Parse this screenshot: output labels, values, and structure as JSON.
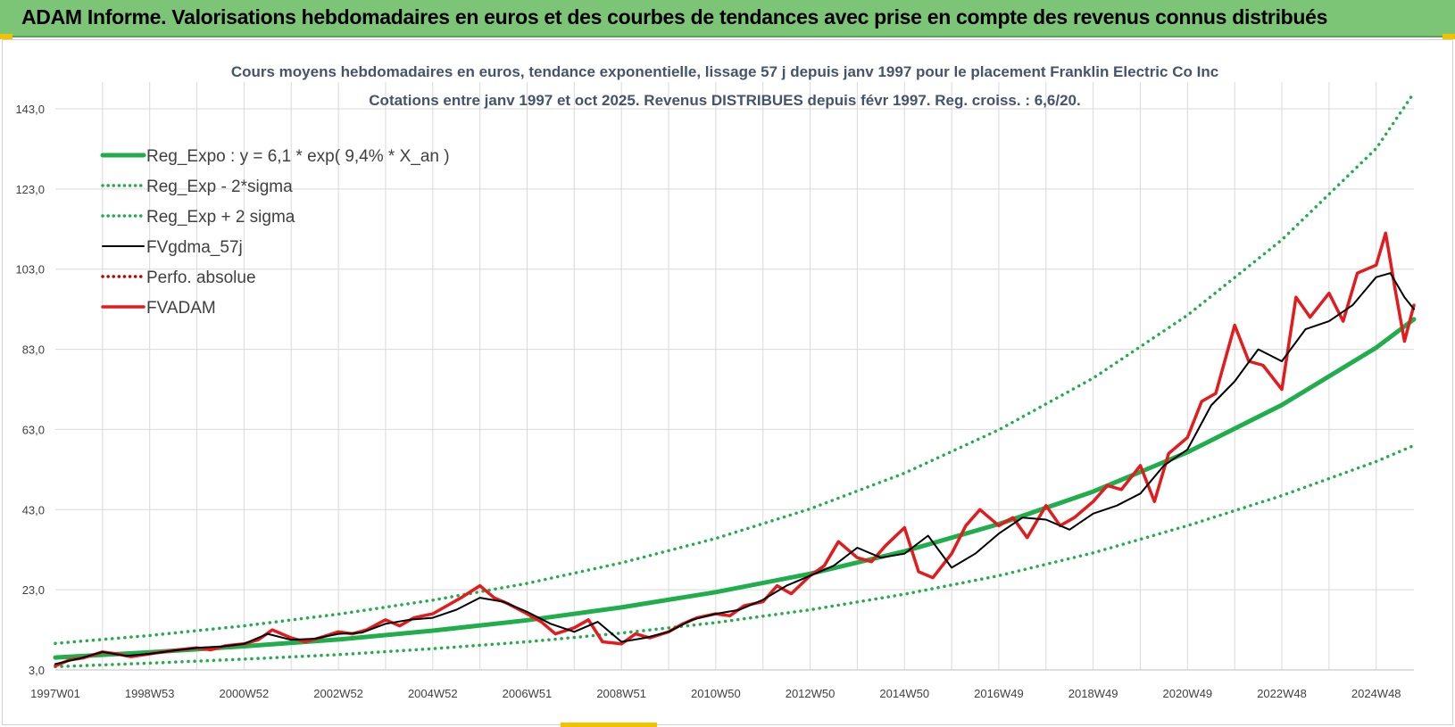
{
  "header": {
    "title": "ADAM Informe. Valorisations hebdomadaires en euros et des courbes de tendances avec prise en compte des revenus connus distribués"
  },
  "colors": {
    "banner_bg": "#7cc576",
    "trend_green": "#1fae4b",
    "fvgdma_black": "#000000",
    "fvadam_red": "#e41a1c",
    "perfo_red": "#c00000",
    "gridline": "#d9d9d9"
  },
  "chart_data": {
    "type": "line",
    "title_line1": "Cours moyens hebdomadaires en euros, tendance exponentielle, lissage 57 j depuis janv 1997 pour le placement Franklin Electric Co Inc",
    "title_line2": "Cotations entre janv 1997 et oct 2025. Revenus DISTRIBUES depuis févr 1997. Reg. croiss. : 6,6/20.",
    "xlabel": "",
    "ylabel": "",
    "ylim": [
      3.0,
      143.0
    ],
    "xlim": [
      1997.0,
      2025.8
    ],
    "y_ticks": [
      "3,0",
      "23,0",
      "43,0",
      "63,0",
      "83,0",
      "103,0",
      "123,0",
      "143,0"
    ],
    "x_ticks": [
      {
        "label": "1997W01",
        "x": 1997.0
      },
      {
        "label": "1998W53",
        "x": 1999.0
      },
      {
        "label": "2000W52",
        "x": 2001.0
      },
      {
        "label": "2002W52",
        "x": 2003.0
      },
      {
        "label": "2004W52",
        "x": 2005.0
      },
      {
        "label": "2006W51",
        "x": 2007.0
      },
      {
        "label": "2008W51",
        "x": 2009.0
      },
      {
        "label": "2010W50",
        "x": 2011.0
      },
      {
        "label": "2012W50",
        "x": 2013.0
      },
      {
        "label": "2014W50",
        "x": 2015.0
      },
      {
        "label": "2016W49",
        "x": 2017.0
      },
      {
        "label": "2018W49",
        "x": 2019.0
      },
      {
        "label": "2020W49",
        "x": 2021.0
      },
      {
        "label": "2022W48",
        "x": 2023.0
      },
      {
        "label": "2024W48",
        "x": 2025.0
      }
    ],
    "grid": true,
    "legend_position": "top-left",
    "series": [
      {
        "name": "Reg_Expo : y = 6,1 * exp( 9,4% *  X_an )",
        "style": "solid-thick",
        "color": "#1fae4b",
        "x": [
          1997.0,
          1999.0,
          2001.0,
          2003.0,
          2005.0,
          2007.0,
          2009.0,
          2011.0,
          2013.0,
          2015.0,
          2017.0,
          2019.0,
          2021.0,
          2023.0,
          2025.0,
          2025.8
        ],
        "y": [
          6.1,
          7.4,
          8.9,
          10.6,
          12.8,
          15.4,
          18.6,
          22.4,
          27.0,
          32.6,
          39.4,
          47.5,
          57.3,
          69.1,
          83.4,
          90.5
        ]
      },
      {
        "name": "Reg_Exp - 2*sigma",
        "style": "dotted",
        "color": "#1fae4b",
        "x": [
          1997.0,
          1999.0,
          2001.0,
          2003.0,
          2005.0,
          2007.0,
          2009.0,
          2011.0,
          2013.0,
          2015.0,
          2017.0,
          2019.0,
          2021.0,
          2023.0,
          2025.0,
          2025.8
        ],
        "y": [
          3.8,
          4.7,
          5.7,
          6.8,
          8.3,
          10.0,
          12.2,
          14.8,
          18.0,
          21.9,
          26.5,
          32.2,
          39.0,
          46.5,
          55.0,
          59.0
        ]
      },
      {
        "name": "Reg_Exp + 2 sigma",
        "style": "dotted",
        "color": "#1fae4b",
        "x": [
          1997.0,
          1999.0,
          2001.0,
          2003.0,
          2005.0,
          2007.0,
          2009.0,
          2011.0,
          2013.0,
          2015.0,
          2017.0,
          2019.0,
          2021.0,
          2023.0,
          2025.0,
          2025.8
        ],
        "y": [
          9.6,
          11.6,
          14.0,
          16.9,
          20.4,
          24.6,
          29.7,
          35.8,
          43.2,
          52.1,
          62.9,
          75.8,
          91.5,
          110.3,
          133.1,
          147.0
        ]
      },
      {
        "name": "FVgdma_57j",
        "style": "solid",
        "color": "#000000",
        "x": [
          1997.0,
          1997.5,
          1998.0,
          1998.5,
          1999.0,
          1999.5,
          2000.0,
          2000.5,
          2001.0,
          2001.5,
          2002.0,
          2002.5,
          2003.0,
          2003.5,
          2004.0,
          2004.5,
          2005.0,
          2005.5,
          2006.0,
          2006.5,
          2007.0,
          2007.5,
          2008.0,
          2008.5,
          2009.0,
          2009.5,
          2010.0,
          2010.5,
          2011.0,
          2011.5,
          2012.0,
          2012.5,
          2013.0,
          2013.5,
          2014.0,
          2014.5,
          2015.0,
          2015.5,
          2016.0,
          2016.5,
          2017.0,
          2017.5,
          2018.0,
          2018.5,
          2019.0,
          2019.5,
          2020.0,
          2020.5,
          2021.0,
          2021.5,
          2022.0,
          2022.5,
          2023.0,
          2023.5,
          2024.0,
          2024.5,
          2025.0,
          2025.3,
          2025.6,
          2025.8
        ],
        "y": [
          4.5,
          5.8,
          7.5,
          6.5,
          7.0,
          7.8,
          8.5,
          8.8,
          9.5,
          12.0,
          10.5,
          10.8,
          12.0,
          12.3,
          14.5,
          15.5,
          16.0,
          18.0,
          21.0,
          20.0,
          17.5,
          14.5,
          12.5,
          15.0,
          10.0,
          11.0,
          12.5,
          15.5,
          17.0,
          18.0,
          20.5,
          24.0,
          26.5,
          29.0,
          33.5,
          31.0,
          32.0,
          36.5,
          28.5,
          32.0,
          37.0,
          41.0,
          40.5,
          38.0,
          42.0,
          44.0,
          47.0,
          54.0,
          58.0,
          69.0,
          75.0,
          83.0,
          80.0,
          88.0,
          90.0,
          94.0,
          101.0,
          102.0,
          96.0,
          93.0
        ]
      },
      {
        "name": "Perfo. absolue",
        "style": "dotted",
        "color": "#c00000",
        "x": [],
        "y": []
      },
      {
        "name": "FVADAM",
        "style": "solid-thick",
        "color": "#e41a1c",
        "x": [
          1997.0,
          1997.3,
          1997.6,
          1998.0,
          1998.3,
          1998.6,
          1999.0,
          1999.3,
          1999.6,
          2000.0,
          2000.3,
          2000.6,
          2001.0,
          2001.3,
          2001.6,
          2002.0,
          2002.3,
          2002.6,
          2003.0,
          2003.3,
          2003.6,
          2004.0,
          2004.3,
          2004.6,
          2005.0,
          2005.3,
          2005.6,
          2006.0,
          2006.3,
          2006.6,
          2007.0,
          2007.3,
          2007.6,
          2008.0,
          2008.3,
          2008.6,
          2009.0,
          2009.3,
          2009.6,
          2010.0,
          2010.3,
          2010.6,
          2011.0,
          2011.3,
          2011.6,
          2012.0,
          2012.3,
          2012.6,
          2013.0,
          2013.3,
          2013.6,
          2014.0,
          2014.3,
          2014.6,
          2015.0,
          2015.3,
          2015.6,
          2016.0,
          2016.3,
          2016.6,
          2017.0,
          2017.3,
          2017.6,
          2018.0,
          2018.3,
          2018.6,
          2019.0,
          2019.3,
          2019.6,
          2020.0,
          2020.3,
          2020.6,
          2021.0,
          2021.3,
          2021.6,
          2022.0,
          2022.3,
          2022.6,
          2023.0,
          2023.3,
          2023.6,
          2024.0,
          2024.3,
          2024.6,
          2025.0,
          2025.2,
          2025.4,
          2025.6,
          2025.8
        ],
        "y": [
          4.0,
          5.5,
          6.0,
          7.5,
          7.0,
          6.3,
          7.0,
          7.5,
          8.0,
          8.5,
          8.0,
          9.0,
          9.5,
          10.5,
          13.0,
          11.0,
          10.0,
          11.0,
          12.5,
          12.0,
          13.0,
          15.5,
          14.0,
          16.0,
          17.0,
          19.0,
          21.0,
          24.0,
          21.0,
          19.5,
          17.0,
          15.0,
          12.0,
          13.5,
          15.5,
          10.0,
          9.5,
          12.0,
          11.0,
          12.5,
          14.5,
          16.0,
          17.0,
          16.5,
          19.0,
          20.0,
          24.0,
          22.0,
          26.5,
          29.0,
          35.0,
          31.0,
          30.0,
          34.0,
          38.5,
          27.5,
          26.0,
          32.0,
          39.0,
          43.0,
          39.0,
          41.0,
          36.0,
          44.0,
          39.0,
          41.0,
          45.0,
          49.0,
          48.0,
          54.0,
          45.0,
          57.0,
          61.0,
          70.0,
          72.0,
          89.0,
          80.0,
          79.0,
          73.0,
          96.0,
          91.0,
          97.0,
          90.0,
          102.0,
          104.0,
          112.0,
          98.0,
          85.0,
          94.0
        ]
      }
    ]
  }
}
